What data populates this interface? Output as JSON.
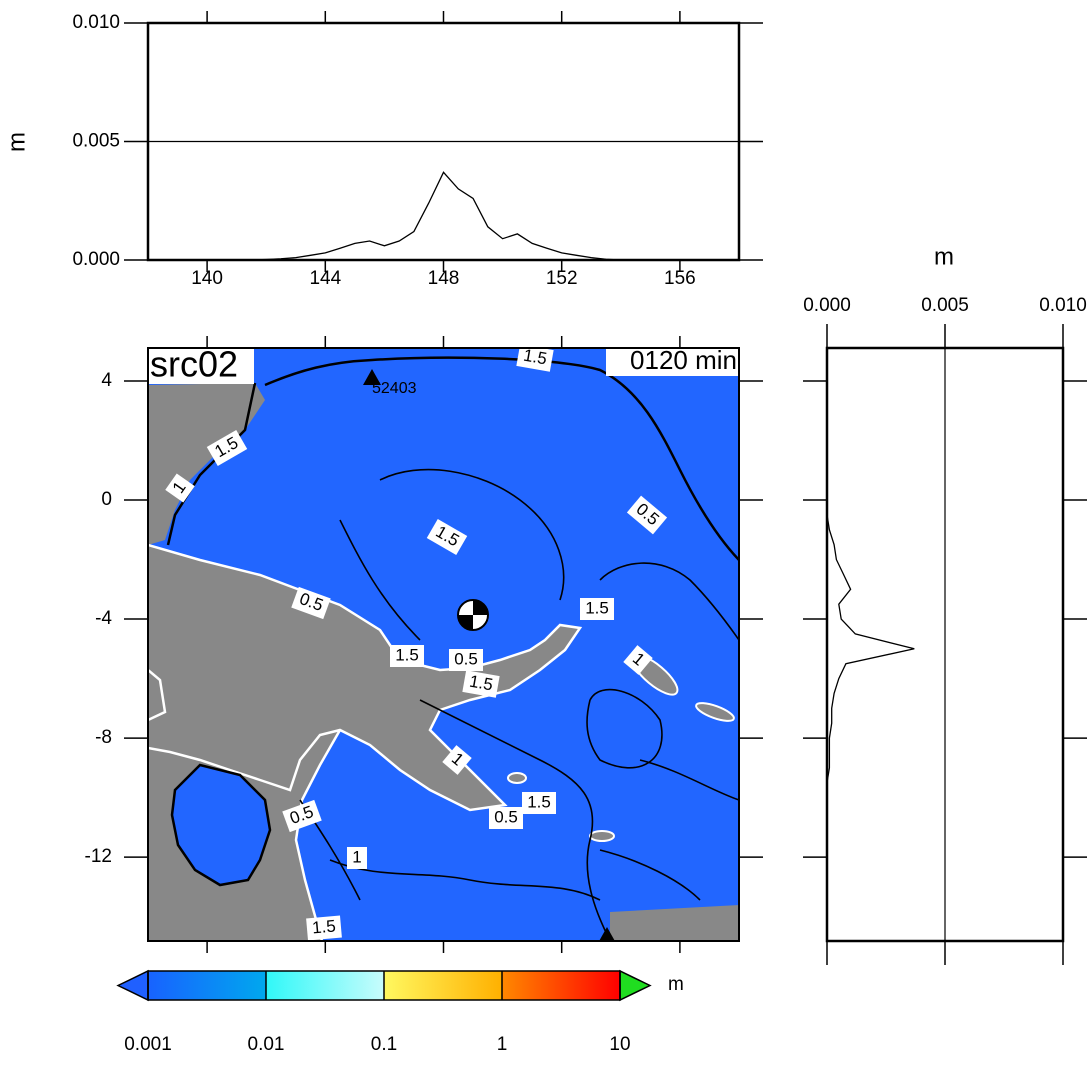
{
  "chart_data": [
    {
      "type": "line",
      "y_label": "m",
      "color": "#000000",
      "grid": true,
      "x": [
        138,
        138.5,
        139,
        139.5,
        140,
        140.5,
        141,
        141.5,
        142,
        142.5,
        143,
        143.5,
        144,
        144.5,
        145,
        145.5,
        146,
        146.5,
        147,
        147.5,
        148,
        148.5,
        149,
        149.5,
        150,
        150.5,
        151,
        151.5,
        152,
        152.5,
        153,
        153.5,
        154,
        154.5,
        155,
        155.5,
        156,
        156.5,
        157,
        157.5,
        158
      ],
      "values": [
        0,
        0,
        0,
        0,
        0,
        0,
        0,
        0,
        2e-05,
        5e-05,
        0.0001,
        0.0002,
        0.0003,
        0.0005,
        0.0007,
        0.0008,
        0.0006,
        0.0008,
        0.0012,
        0.0024,
        0.0037,
        0.003,
        0.0026,
        0.0014,
        0.0009,
        0.0011,
        0.0007,
        0.0005,
        0.0003,
        0.0002,
        0.0001,
        3e-05,
        0,
        0,
        0,
        0,
        0,
        0,
        0,
        0,
        0
      ],
      "xlim": [
        138,
        158
      ],
      "xticks": [
        140,
        144,
        148,
        152,
        156
      ],
      "ylim": [
        0,
        0.01
      ],
      "yticks": [
        {
          "value": 0,
          "label": "0.000"
        },
        0.005,
        {
          "value": 0.01,
          "label": "0.010"
        }
      ]
    },
    {
      "type": "line",
      "orientation": "horizontal",
      "x_label": "m",
      "color": "#000000",
      "grid": true,
      "x": [
        5,
        4.5,
        4,
        3.5,
        3,
        2.5,
        2,
        1.5,
        1,
        0.5,
        0,
        -0.5,
        -1,
        -1.5,
        -2,
        -2.5,
        -3,
        -3.5,
        -4,
        -4.5,
        -5,
        -5.5,
        -6,
        -6.5,
        -7,
        -7.5,
        -8,
        -8.5,
        -9,
        -9.5,
        -10,
        -10.5,
        -11,
        -11.5,
        -12,
        -12.5,
        -13,
        -13.5,
        -14,
        -14.5
      ],
      "values": [
        0,
        0,
        0,
        0,
        0,
        0,
        0,
        0,
        0,
        0,
        0,
        0,
        0.0001,
        0.0003,
        0.0004,
        0.0007,
        0.001,
        0.0005,
        0.0006,
        0.0012,
        0.0037,
        0.0008,
        0.0005,
        0.0003,
        0.0002,
        0.0002,
        0.0001,
        0.0001,
        0.0001,
        0,
        0,
        0,
        0,
        0,
        0,
        0,
        0,
        0,
        0,
        0
      ],
      "xlim": [
        0,
        0.01
      ],
      "xticks": [
        {
          "value": 0,
          "label": "0.000"
        },
        0.005,
        {
          "value": 0.01,
          "label": "0.010"
        }
      ],
      "ylim": [
        -14.82,
        5.11
      ]
    },
    {
      "type": "map",
      "title": "src02",
      "time_label": "0120 min",
      "station": "52403",
      "ocean_color": "#2266ff",
      "land_color": "#888888",
      "xlim": [
        138,
        158
      ],
      "xticks": [
        140,
        144,
        148,
        152,
        156
      ],
      "ylim": [
        -14.82,
        5.11
      ],
      "yticks": [
        4,
        0,
        -4,
        -8,
        -12
      ],
      "contour_labels": [
        1.5,
        1,
        1.5,
        0.5,
        1.5,
        0.5,
        1.5,
        1,
        1.5,
        0.5,
        1.5,
        1,
        1.5,
        0.5,
        0.5,
        1,
        1.5
      ]
    },
    {
      "type": "colorbar",
      "log": true,
      "unit": "m",
      "ticks": [
        0.001,
        0.01,
        0.1,
        1,
        10
      ],
      "colors": [
        [
          "#1862ff",
          "#00a8ee"
        ],
        [
          "#30f8f8",
          "#c8fcfc"
        ],
        [
          "#fff860",
          "#ffb000"
        ],
        [
          "#ff8800",
          "#ff0000"
        ]
      ],
      "under_color": "#2060ff",
      "over_color": "#20dd20"
    }
  ]
}
